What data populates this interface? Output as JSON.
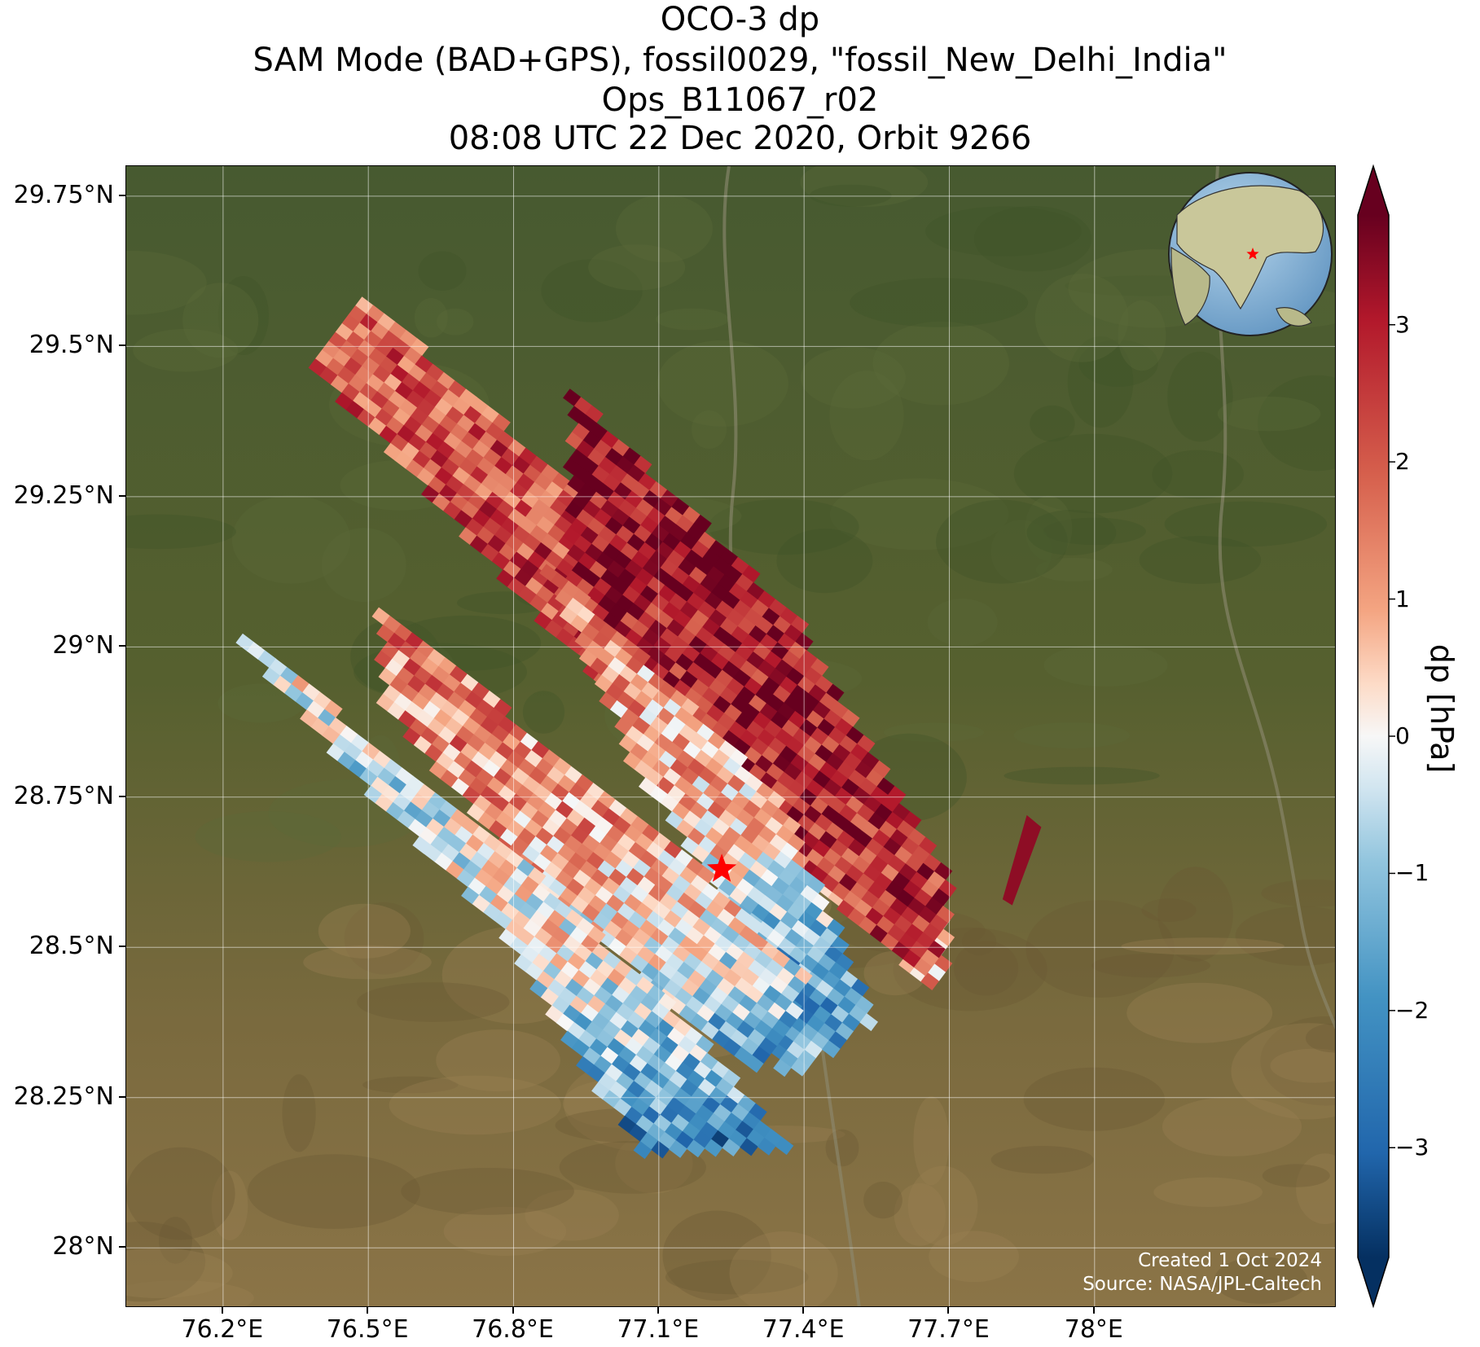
{
  "title": {
    "line1": "OCO-3 dp",
    "line2": "SAM Mode (BAD+GPS), fossil0029, \"fossil_New_Delhi_India\"",
    "line3": "Ops_B11067_r02",
    "line4": "08:08 UTC 22 Dec 2020, Orbit 9266"
  },
  "map": {
    "lon_range": [
      76.0,
      78.5
    ],
    "lat_range": [
      27.9,
      29.8
    ],
    "lat_ticks": [
      {
        "value": 29.75,
        "label": "29.75°N"
      },
      {
        "value": 29.5,
        "label": "29.5°N"
      },
      {
        "value": 29.25,
        "label": "29.25°N"
      },
      {
        "value": 29.0,
        "label": "29°N"
      },
      {
        "value": 28.75,
        "label": "28.75°N"
      },
      {
        "value": 28.5,
        "label": "28.5°N"
      },
      {
        "value": 28.25,
        "label": "28.25°N"
      },
      {
        "value": 28.0,
        "label": "28°N"
      }
    ],
    "lon_ticks": [
      {
        "value": 76.2,
        "label": "76.2°E"
      },
      {
        "value": 76.5,
        "label": "76.5°E"
      },
      {
        "value": 76.8,
        "label": "76.8°E"
      },
      {
        "value": 77.1,
        "label": "77.1°E"
      },
      {
        "value": 77.4,
        "label": "77.4°E"
      },
      {
        "value": 77.7,
        "label": "77.7°E"
      },
      {
        "value": 78.0,
        "label": "78°E"
      }
    ],
    "gridlines": true,
    "basemap": "satellite",
    "target_marker": {
      "lon": 77.23,
      "lat": 28.63,
      "color": "#ff0000",
      "shape": "star"
    },
    "inset_globe": {
      "placement": "top-right",
      "marker_color": "#ff0000"
    }
  },
  "chart_data": {
    "type": "heatmap",
    "variable": "dp",
    "units": "hPa",
    "colormap": "RdBu_r",
    "vmin": -3.8,
    "vmax": 3.8,
    "colorbar": {
      "label": "dp [hPa]",
      "ticks": [
        {
          "value": 3,
          "label": "3"
        },
        {
          "value": 2,
          "label": "2"
        },
        {
          "value": 1,
          "label": "1"
        },
        {
          "value": 0,
          "label": "0"
        },
        {
          "value": -1,
          "label": "−1"
        },
        {
          "value": -2,
          "label": "−2"
        },
        {
          "value": -3,
          "label": "−3"
        }
      ],
      "extend": "both"
    },
    "swaths": [
      {
        "corners": [
          [
            76.5,
            29.58
          ],
          [
            77.28,
            29.0
          ],
          [
            77.7,
            28.55
          ],
          [
            77.68,
            28.42
          ],
          [
            77.0,
            28.92
          ],
          [
            76.38,
            29.47
          ]
        ],
        "dp_gradient": [
          [
            0.0,
            2.0
          ],
          [
            0.45,
            2.3
          ],
          [
            0.75,
            1.6
          ],
          [
            0.88,
            0.8
          ],
          [
            1.0,
            1.2
          ]
        ]
      },
      {
        "corners": [
          [
            76.92,
            29.43
          ],
          [
            77.39,
            29.04
          ],
          [
            77.71,
            28.6
          ],
          [
            77.66,
            28.44
          ],
          [
            77.18,
            28.78
          ],
          [
            76.92,
            29.05
          ]
        ],
        "dp_gradient": [
          [
            0.0,
            3.2
          ],
          [
            0.55,
            3.1
          ],
          [
            0.85,
            2.6
          ],
          [
            1.0,
            2.4
          ]
        ]
      },
      {
        "corners": [
          [
            76.85,
            29.16
          ],
          [
            77.35,
            28.75
          ],
          [
            77.55,
            28.38
          ],
          [
            77.36,
            28.28
          ],
          [
            77.25,
            28.55
          ],
          [
            77.05,
            28.8
          ]
        ],
        "dp_gradient": [
          [
            0.0,
            1.5
          ],
          [
            0.55,
            0.6
          ],
          [
            0.78,
            -1.8
          ],
          [
            1.0,
            -1.6
          ]
        ]
      },
      {
        "corners": [
          [
            76.52,
            29.07
          ],
          [
            77.2,
            28.62
          ],
          [
            77.42,
            28.44
          ],
          [
            77.3,
            28.3
          ],
          [
            76.9,
            28.55
          ],
          [
            76.53,
            28.9
          ]
        ],
        "dp_gradient": [
          [
            0.0,
            1.6
          ],
          [
            0.5,
            1.1
          ],
          [
            0.8,
            -0.4
          ],
          [
            1.0,
            -2.2
          ]
        ]
      },
      {
        "corners": [
          [
            76.21,
            29.04
          ],
          [
            76.85,
            28.62
          ],
          [
            77.18,
            28.36
          ],
          [
            77.37,
            28.16
          ],
          [
            77.06,
            28.16
          ],
          [
            76.75,
            28.55
          ],
          [
            76.45,
            28.8
          ]
        ],
        "dp_gradient": [
          [
            0.0,
            0.3
          ],
          [
            0.3,
            -0.6
          ],
          [
            0.6,
            0.2
          ],
          [
            0.85,
            -1.3
          ],
          [
            1.0,
            -2.6
          ]
        ]
      },
      {
        "corners": [
          [
            77.86,
            28.72
          ],
          [
            77.89,
            28.7
          ],
          [
            77.83,
            28.57
          ],
          [
            77.81,
            28.58
          ]
        ],
        "dp_gradient": [
          [
            0.0,
            3.4
          ],
          [
            1.0,
            3.4
          ]
        ]
      }
    ]
  },
  "credit": {
    "created": "Created 1 Oct 2024",
    "source": "Source: NASA/JPL-Caltech"
  }
}
